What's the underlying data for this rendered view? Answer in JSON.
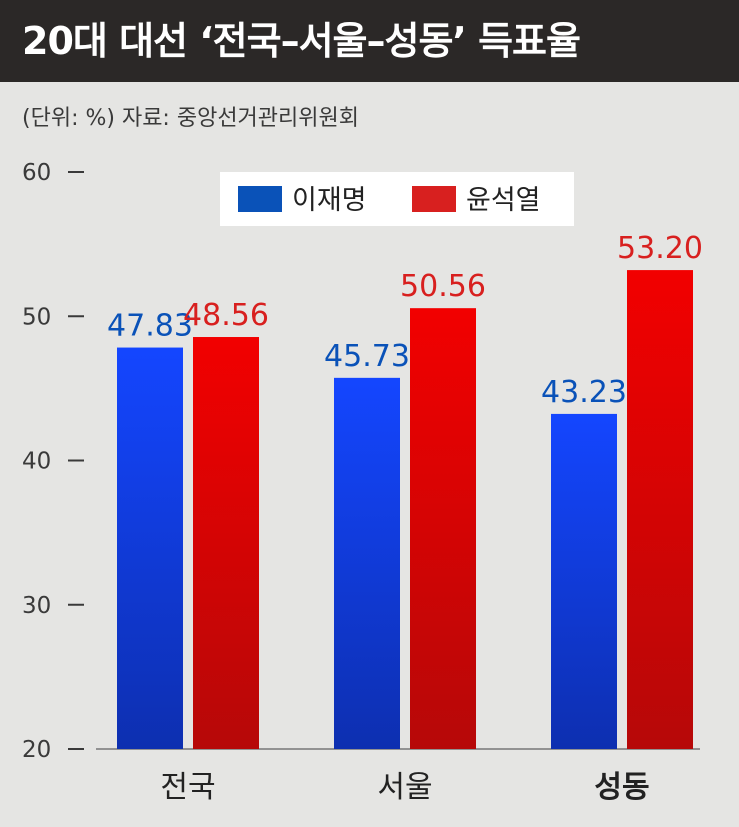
{
  "header": {
    "title": "20대 대선 ‘전국–서울–성동’ 득표율"
  },
  "subtitle": "(단위: %) 자료: 중앙선거관리위원회",
  "colors": {
    "blue": "#0a52b8",
    "blue_bar_top": "#1446ff",
    "blue_bar_bottom": "#0d2fb0",
    "red": "#d8201f",
    "red_bar_top": "#f20000",
    "red_bar_bottom": "#b60808"
  },
  "chart_data": {
    "type": "bar",
    "categories": [
      "전국",
      "서울",
      "성동"
    ],
    "series": [
      {
        "name": "이재명",
        "values": [
          47.83,
          45.73,
          43.23
        ],
        "labels": [
          "47.83",
          "45.73",
          "43.23"
        ]
      },
      {
        "name": "윤석열",
        "values": [
          48.56,
          50.56,
          53.2
        ],
        "labels": [
          "48.56",
          "50.56",
          "53.20"
        ]
      }
    ],
    "yticks": [
      "20",
      "30",
      "40",
      "50",
      "60"
    ],
    "ylim": [
      20,
      60
    ],
    "highlighted_category": "성동",
    "legend_position": "top-center",
    "grid": false
  }
}
